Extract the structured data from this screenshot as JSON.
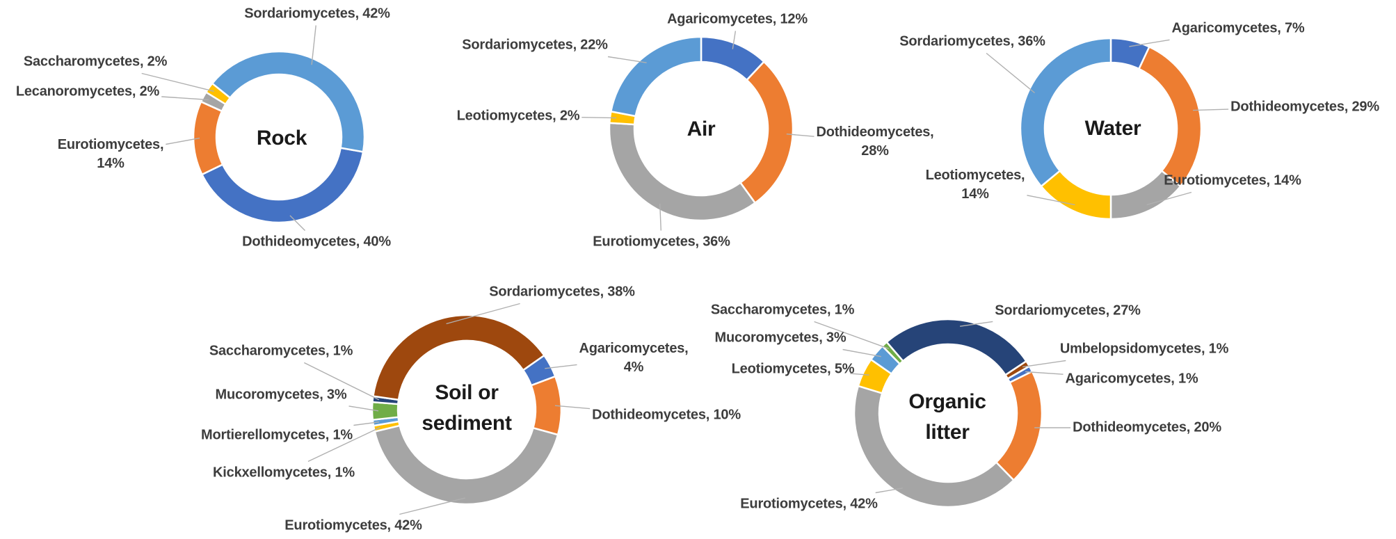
{
  "figure": {
    "background_color": "#ffffff",
    "label_text_color": "#3d3d3d",
    "title_text_color": "#1a1a1a",
    "leader_line_color": "#b0b0b0"
  },
  "chart_data": [
    {
      "type": "donut",
      "title": "Rock",
      "start_angle_deg": 100,
      "direction": "clockwise",
      "slices": [
        {
          "name": "Dothideomycetes",
          "value_pct": 40,
          "color": "#4472C4",
          "label": "Dothideomycetes, 40%"
        },
        {
          "name": "Eurotiomycetes",
          "value_pct": 14,
          "color": "#ED7D31",
          "label": "Eurotiomycetes, 14%",
          "label_line1": "Eurotiomycetes,",
          "label_line2": "14%"
        },
        {
          "name": "Lecanoromycetes",
          "value_pct": 2,
          "color": "#A5A5A5",
          "label": "Lecanoromycetes, 2%"
        },
        {
          "name": "Saccharomycetes",
          "value_pct": 2,
          "color": "#FFC000",
          "label": "Saccharomycetes, 2%"
        },
        {
          "name": "Sordariomycetes",
          "value_pct": 42,
          "color": "#5B9BD5",
          "label": "Sordariomycetes, 42%"
        }
      ]
    },
    {
      "type": "donut",
      "title": "Air",
      "start_angle_deg": 0,
      "direction": "clockwise",
      "slices": [
        {
          "name": "Agaricomycetes",
          "value_pct": 12,
          "color": "#4472C4",
          "label": "Agaricomycetes, 12%"
        },
        {
          "name": "Dothideomycetes",
          "value_pct": 28,
          "color": "#ED7D31",
          "label": "Dothideomycetes, 28%",
          "label_line1": "Dothideomycetes,",
          "label_line2": "28%"
        },
        {
          "name": "Eurotiomycetes",
          "value_pct": 36,
          "color": "#A5A5A5",
          "label": "Eurotiomycetes, 36%"
        },
        {
          "name": "Leotiomycetes",
          "value_pct": 2,
          "color": "#FFC000",
          "label": "Leotiomycetes, 2%"
        },
        {
          "name": "Sordariomycetes",
          "value_pct": 22,
          "color": "#5B9BD5",
          "label": "Sordariomycetes, 22%"
        }
      ]
    },
    {
      "type": "donut",
      "title": "Water",
      "start_angle_deg": 0,
      "direction": "clockwise",
      "slices": [
        {
          "name": "Agaricomycetes",
          "value_pct": 7,
          "color": "#4472C4",
          "label": "Agaricomycetes, 7%"
        },
        {
          "name": "Dothideomycetes",
          "value_pct": 29,
          "color": "#ED7D31",
          "label": "Dothideomycetes, 29%"
        },
        {
          "name": "Eurotiomycetes",
          "value_pct": 14,
          "color": "#A5A5A5",
          "label": "Eurotiomycetes, 14%"
        },
        {
          "name": "Leotiomycetes",
          "value_pct": 14,
          "color": "#FFC000",
          "label": "Leotiomycetes, 14%",
          "label_line1": "Leotiomycetes,",
          "label_line2": "14%"
        },
        {
          "name": "Sordariomycetes",
          "value_pct": 36,
          "color": "#5B9BD5",
          "label": "Sordariomycetes, 36%"
        }
      ]
    },
    {
      "type": "donut",
      "title": "Soil or sediment",
      "title_line1": "Soil or",
      "title_line2": "sediment",
      "start_angle_deg": 55,
      "direction": "clockwise",
      "slices": [
        {
          "name": "Agaricomycetes",
          "value_pct": 4,
          "color": "#4472C4",
          "label": "Agaricomycetes, 4%",
          "label_line1": "Agaricomycetes,",
          "label_line2": "4%"
        },
        {
          "name": "Dothideomycetes",
          "value_pct": 10,
          "color": "#ED7D31",
          "label": "Dothideomycetes, 10%"
        },
        {
          "name": "Eurotiomycetes",
          "value_pct": 42,
          "color": "#A5A5A5",
          "label": "Eurotiomycetes, 42%"
        },
        {
          "name": "Kickxellomycetes",
          "value_pct": 1,
          "color": "#FFC000",
          "label": "Kickxellomycetes, 1%"
        },
        {
          "name": "Mortierellomycetes",
          "value_pct": 1,
          "color": "#5B9BD5",
          "label": "Mortierellomycetes, 1%"
        },
        {
          "name": "Mucoromycetes",
          "value_pct": 3,
          "color": "#70AD47",
          "label": "Mucoromycetes, 3%"
        },
        {
          "name": "Saccharomycetes",
          "value_pct": 1,
          "color": "#264478",
          "label": "Saccharomycetes, 1%"
        },
        {
          "name": "Sordariomycetes",
          "value_pct": 38,
          "color": "#9E480E",
          "label": "Sordariomycetes, 38%"
        }
      ]
    },
    {
      "type": "donut",
      "title": "Organic litter",
      "title_line1": "Organic",
      "title_line2": "litter",
      "start_angle_deg": 60,
      "direction": "clockwise",
      "slices": [
        {
          "name": "Agaricomycetes",
          "value_pct": 1,
          "color": "#4472C4",
          "label": "Agaricomycetes, 1%"
        },
        {
          "name": "Dothideomycetes",
          "value_pct": 20,
          "color": "#ED7D31",
          "label": "Dothideomycetes, 20%"
        },
        {
          "name": "Eurotiomycetes",
          "value_pct": 42,
          "color": "#A5A5A5",
          "label": "Eurotiomycetes, 42%"
        },
        {
          "name": "Leotiomycetes",
          "value_pct": 5,
          "color": "#FFC000",
          "label": "Leotiomycetes, 5%"
        },
        {
          "name": "Mucoromycetes",
          "value_pct": 3,
          "color": "#5B9BD5",
          "label": "Mucoromycetes, 3%"
        },
        {
          "name": "Saccharomycetes",
          "value_pct": 1,
          "color": "#70AD47",
          "label": "Saccharomycetes, 1%"
        },
        {
          "name": "Sordariomycetes",
          "value_pct": 27,
          "color": "#264478",
          "label": "Sordariomycetes, 27%"
        },
        {
          "name": "Umbelopsidomycetes",
          "value_pct": 1,
          "color": "#9E480E",
          "label": "Umbelopsidomycetes, 1%"
        }
      ]
    }
  ]
}
